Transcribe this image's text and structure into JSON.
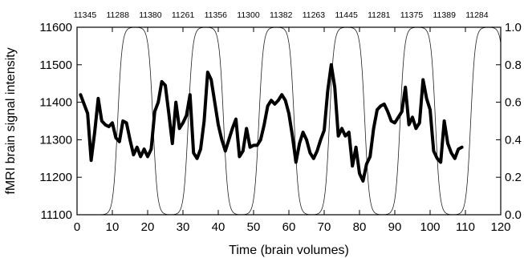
{
  "chart_data": {
    "type": "line",
    "xlabel": "Time (brain volumes)",
    "ylabel": "fMRI brain signal intensity",
    "xlim": [
      0,
      120
    ],
    "ylim": [
      11100,
      11600
    ],
    "y2lim": [
      0.0,
      1.0
    ],
    "x_ticks": [
      "0",
      "10",
      "20",
      "30",
      "40",
      "50",
      "60",
      "70",
      "80",
      "90",
      "100",
      "110",
      "120"
    ],
    "y_ticks": [
      "11100",
      "11200",
      "11300",
      "11400",
      "11500",
      "11600"
    ],
    "y2_ticks": [
      "0.0",
      "0.2",
      "0.4",
      "0.6",
      "0.8",
      "1.0"
    ],
    "grid": false,
    "block_labels": [
      {
        "x": 4,
        "label": "11345"
      },
      {
        "x": 14.5,
        "label": "11288"
      },
      {
        "x": 24.5,
        "label": "11380"
      },
      {
        "x": 34.5,
        "label": "11261"
      },
      {
        "x": 44.5,
        "label": "11356"
      },
      {
        "x": 54.5,
        "label": "11300"
      },
      {
        "x": 64.5,
        "label": "11382"
      },
      {
        "x": 74.5,
        "label": "11263"
      },
      {
        "x": 84.5,
        "label": "11445"
      },
      {
        "x": 94.5,
        "label": "11281"
      },
      {
        "x": 104.5,
        "label": "11375"
      },
      {
        "x": 114.5,
        "label": "11389"
      },
      {
        "x": 124.5,
        "label": "11284"
      }
    ],
    "series": [
      {
        "axis": "left",
        "x": [
          1,
          2,
          3,
          4,
          5,
          6,
          7,
          8,
          9,
          10,
          11,
          12,
          13,
          14,
          15,
          16,
          17,
          18,
          19,
          20,
          21,
          22,
          23,
          24,
          25,
          26,
          27,
          28,
          29,
          30,
          31,
          32,
          33,
          34,
          35,
          36,
          37,
          38,
          39,
          40,
          41,
          42,
          43,
          44,
          45,
          46,
          47,
          48,
          49,
          50,
          51,
          52,
          53,
          54,
          55,
          56,
          57,
          58,
          59,
          60,
          61,
          62,
          63,
          64,
          65,
          66,
          67,
          68,
          69,
          70,
          71,
          72,
          73,
          74,
          75,
          76,
          77,
          78,
          79,
          80,
          81,
          82,
          83,
          84,
          85,
          86,
          87,
          88,
          89,
          90,
          91,
          92,
          93,
          94,
          95,
          96,
          97,
          98,
          99,
          100,
          101,
          102,
          103,
          104,
          105,
          106,
          107,
          108,
          109
        ],
        "y": [
          11420,
          11395,
          11370,
          11245,
          11320,
          11410,
          11350,
          11340,
          11335,
          11345,
          11305,
          11295,
          11350,
          11345,
          11300,
          11260,
          11280,
          11255,
          11275,
          11255,
          11275,
          11375,
          11400,
          11455,
          11445,
          11370,
          11290,
          11400,
          11330,
          11345,
          11365,
          11420,
          11265,
          11250,
          11275,
          11350,
          11480,
          11460,
          11400,
          11340,
          11300,
          11270,
          11300,
          11330,
          11355,
          11255,
          11270,
          11330,
          11280,
          11285,
          11285,
          11300,
          11340,
          11390,
          11405,
          11395,
          11405,
          11420,
          11405,
          11370,
          11310,
          11240,
          11290,
          11320,
          11300,
          11265,
          11250,
          11270,
          11300,
          11325,
          11430,
          11500,
          11440,
          11310,
          11330,
          11310,
          11320,
          11230,
          11280,
          11210,
          11190,
          11235,
          11255,
          11330,
          11380,
          11390,
          11395,
          11375,
          11350,
          11345,
          11360,
          11375,
          11440,
          11340,
          11360,
          11330,
          11345,
          11460,
          11410,
          11380,
          11270,
          11250,
          11240,
          11350,
          11290,
          11265,
          11250,
          11275,
          11280
        ]
      },
      {
        "axis": "right",
        "type": "blocks",
        "on_ranges": [
          [
            10,
            20
          ],
          [
            30,
            40
          ],
          [
            50,
            60
          ],
          [
            70,
            80
          ],
          [
            90,
            100
          ],
          [
            110,
            120
          ]
        ]
      }
    ]
  }
}
